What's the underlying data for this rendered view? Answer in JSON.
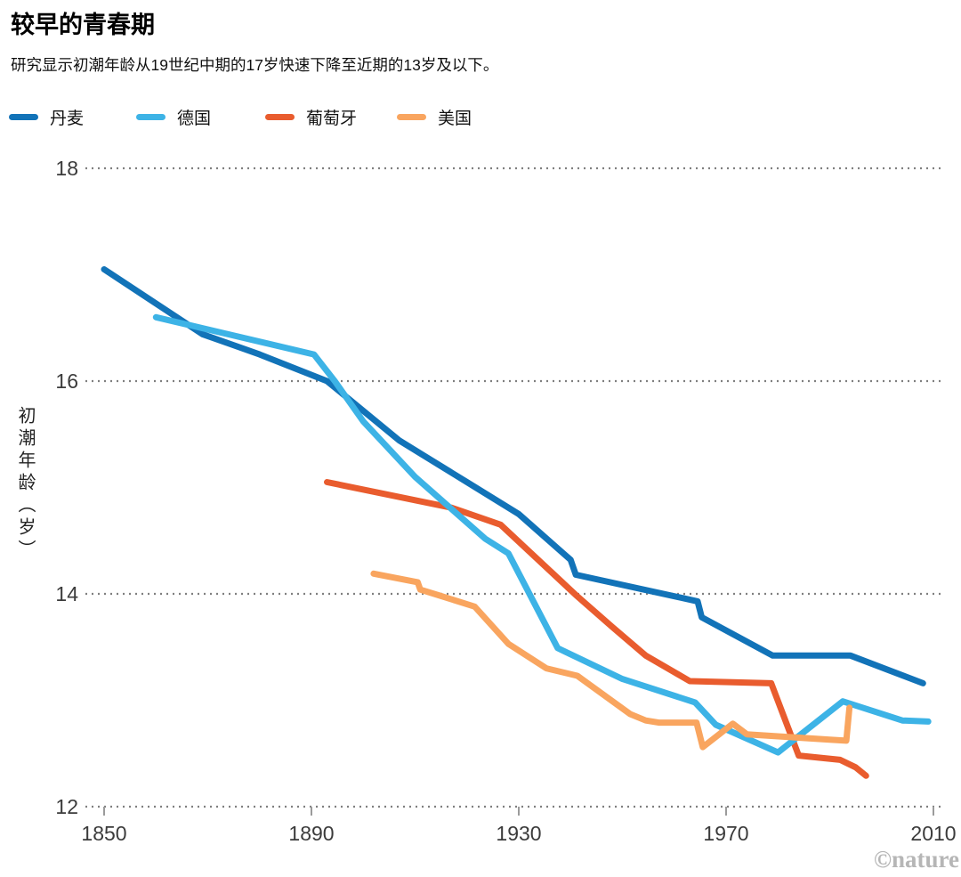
{
  "chart_data": {
    "type": "line",
    "title": "较早的青春期",
    "subtitle": "研究显示初潮年龄从19世纪中期的17岁快速下降至近期的13岁及以下。",
    "ylabel": "初潮年龄（岁）",
    "xlim": [
      1850,
      2010
    ],
    "ylim": [
      12,
      18
    ],
    "yticks": [
      18,
      16,
      14,
      12
    ],
    "xticks": [
      1850,
      1890,
      1930,
      1970,
      2010
    ],
    "grid": "horizontal dotted",
    "legend_position": "top",
    "colors": {
      "grid": "#7f7f7f",
      "tick": "#9b9b9b",
      "axis_text": "#3b3b3b"
    },
    "series": [
      {
        "name": "丹麦",
        "color": "#1273b8",
        "points": [
          [
            1850,
            17.05
          ],
          [
            1869,
            16.44
          ],
          [
            1880,
            16.25
          ],
          [
            1893,
            16.0
          ],
          [
            1907,
            15.44
          ],
          [
            1920,
            15.05
          ],
          [
            1930,
            14.75
          ],
          [
            1940,
            14.32
          ],
          [
            1941,
            14.18
          ],
          [
            1964.5,
            13.93
          ],
          [
            1965.3,
            13.78
          ],
          [
            1979,
            13.42
          ],
          [
            1994,
            13.42
          ],
          [
            2008,
            13.16
          ]
        ]
      },
      {
        "name": "德国",
        "color": "#3db3e6",
        "points": [
          [
            1860,
            16.6
          ],
          [
            1890.5,
            16.25
          ],
          [
            1894.5,
            16.0
          ],
          [
            1900,
            15.62
          ],
          [
            1910,
            15.1
          ],
          [
            1923.5,
            14.52
          ],
          [
            1928,
            14.38
          ],
          [
            1937.5,
            13.49
          ],
          [
            1950,
            13.2
          ],
          [
            1964,
            12.98
          ],
          [
            1968,
            12.77
          ],
          [
            1974,
            12.64
          ],
          [
            1980,
            12.51
          ],
          [
            1992.5,
            12.99
          ],
          [
            2004,
            12.81
          ],
          [
            2009,
            12.8
          ]
        ]
      },
      {
        "name": "葡萄牙",
        "color": "#e95c2e",
        "points": [
          [
            1893,
            15.05
          ],
          [
            1917,
            14.81
          ],
          [
            1926.5,
            14.65
          ],
          [
            1941,
            13.99
          ],
          [
            1948,
            13.69
          ],
          [
            1954.5,
            13.42
          ],
          [
            1963,
            13.18
          ],
          [
            1978.7,
            13.16
          ],
          [
            1984,
            12.48
          ],
          [
            1992,
            12.44
          ],
          [
            1995,
            12.37
          ],
          [
            1997,
            12.29
          ]
        ]
      },
      {
        "name": "美国",
        "color": "#f9a55f",
        "points": [
          [
            1902,
            14.19
          ],
          [
            1910.5,
            14.11
          ],
          [
            1911,
            14.04
          ],
          [
            1915,
            13.98
          ],
          [
            1921.5,
            13.88
          ],
          [
            1928,
            13.53
          ],
          [
            1935.3,
            13.3
          ],
          [
            1941.3,
            13.23
          ],
          [
            1951.5,
            12.87
          ],
          [
            1954.5,
            12.81
          ],
          [
            1957,
            12.79
          ],
          [
            1964.3,
            12.79
          ],
          [
            1965.5,
            12.56
          ],
          [
            1971.3,
            12.78
          ],
          [
            1974,
            12.68
          ],
          [
            1977,
            12.67
          ],
          [
            1990,
            12.63
          ],
          [
            1993.2,
            12.62
          ],
          [
            1993.8,
            12.93
          ]
        ]
      }
    ]
  },
  "watermark": "©nature"
}
